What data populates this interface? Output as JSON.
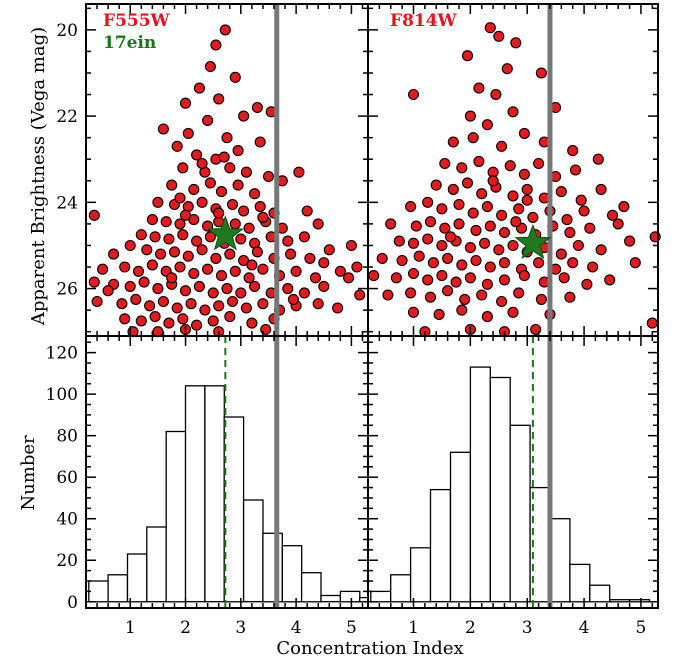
{
  "colors": {
    "point_fill": "#e41a1c",
    "point_edge": "#000000",
    "star": "#1f7a1f",
    "panel_label_red": "#e8101a",
    "panel_label_green": "#137a13",
    "ci_cut_line": "#777777",
    "dashed_line": "#137a13"
  },
  "chart_data": [
    {
      "type": "scatter",
      "panel": "top-left",
      "labels": [
        "F555W",
        "17ein"
      ],
      "xlim": [
        0.2,
        5.3
      ],
      "ylim": [
        27.1,
        19.4
      ],
      "y_reversed": true,
      "ylabel": "Apparent Brightness (Vega mag)",
      "yticks": [
        20,
        22,
        24,
        26
      ],
      "ci_cut": 3.65,
      "star": {
        "x": 2.72,
        "y": 24.75
      },
      "points": [
        [
          2.72,
          20.0
        ],
        [
          2.55,
          20.35
        ],
        [
          2.45,
          20.85
        ],
        [
          2.25,
          21.35
        ],
        [
          2.9,
          21.1
        ],
        [
          3.3,
          21.8
        ],
        [
          2.0,
          21.7
        ],
        [
          2.6,
          21.6
        ],
        [
          1.6,
          22.3
        ],
        [
          1.85,
          22.7
        ],
        [
          2.05,
          22.4
        ],
        [
          3.05,
          22.0
        ],
        [
          3.55,
          21.9
        ],
        [
          2.4,
          22.1
        ],
        [
          2.75,
          22.5
        ],
        [
          2.2,
          22.9
        ],
        [
          2.95,
          22.8
        ],
        [
          3.35,
          22.6
        ],
        [
          1.95,
          23.2
        ],
        [
          2.35,
          23.3
        ],
        [
          2.55,
          23.0
        ],
        [
          2.8,
          23.2
        ],
        [
          3.1,
          23.3
        ],
        [
          3.5,
          23.4
        ],
        [
          1.75,
          23.6
        ],
        [
          2.15,
          23.7
        ],
        [
          2.45,
          23.55
        ],
        [
          2.65,
          23.75
        ],
        [
          2.95,
          23.6
        ],
        [
          3.25,
          23.8
        ],
        [
          3.75,
          23.5
        ],
        [
          4.05,
          23.3
        ],
        [
          1.5,
          24.0
        ],
        [
          1.8,
          24.05
        ],
        [
          2.05,
          24.1
        ],
        [
          2.3,
          24.0
        ],
        [
          2.55,
          24.15
        ],
        [
          2.85,
          24.05
        ],
        [
          3.05,
          24.2
        ],
        [
          3.35,
          24.1
        ],
        [
          3.6,
          24.25
        ],
        [
          4.2,
          24.2
        ],
        [
          1.4,
          24.4
        ],
        [
          1.65,
          24.45
        ],
        [
          1.9,
          24.5
        ],
        [
          2.15,
          24.4
        ],
        [
          2.4,
          24.55
        ],
        [
          2.6,
          24.45
        ],
        [
          2.9,
          24.5
        ],
        [
          3.15,
          24.6
        ],
        [
          3.45,
          24.45
        ],
        [
          3.75,
          24.6
        ],
        [
          4.4,
          24.5
        ],
        [
          0.35,
          24.3
        ],
        [
          1.2,
          24.75
        ],
        [
          1.45,
          24.8
        ],
        [
          1.7,
          24.85
        ],
        [
          1.95,
          24.75
        ],
        [
          2.2,
          24.9
        ],
        [
          2.45,
          24.8
        ],
        [
          2.7,
          24.95
        ],
        [
          3.0,
          24.85
        ],
        [
          3.25,
          24.95
        ],
        [
          3.55,
          24.8
        ],
        [
          3.85,
          24.9
        ],
        [
          4.15,
          24.8
        ],
        [
          0.7,
          25.2
        ],
        [
          1.0,
          25.0
        ],
        [
          1.3,
          25.1
        ],
        [
          1.55,
          25.2
        ],
        [
          1.8,
          25.15
        ],
        [
          2.05,
          25.25
        ],
        [
          2.3,
          25.1
        ],
        [
          2.55,
          25.3
        ],
        [
          2.8,
          25.2
        ],
        [
          3.05,
          25.35
        ],
        [
          3.3,
          25.15
        ],
        [
          3.6,
          25.3
        ],
        [
          3.9,
          25.2
        ],
        [
          4.25,
          25.3
        ],
        [
          4.6,
          25.1
        ],
        [
          5.0,
          25.0
        ],
        [
          0.5,
          25.55
        ],
        [
          0.9,
          25.5
        ],
        [
          1.15,
          25.6
        ],
        [
          1.4,
          25.45
        ],
        [
          1.65,
          25.6
        ],
        [
          1.9,
          25.5
        ],
        [
          2.15,
          25.65
        ],
        [
          2.4,
          25.55
        ],
        [
          2.65,
          25.7
        ],
        [
          2.9,
          25.6
        ],
        [
          3.15,
          25.75
        ],
        [
          3.4,
          25.55
        ],
        [
          3.7,
          25.7
        ],
        [
          4.0,
          25.6
        ],
        [
          4.35,
          25.75
        ],
        [
          4.8,
          25.6
        ],
        [
          5.1,
          25.5
        ],
        [
          0.35,
          25.85
        ],
        [
          0.7,
          25.9
        ],
        [
          1.0,
          25.95
        ],
        [
          1.25,
          25.85
        ],
        [
          1.5,
          26.0
        ],
        [
          1.75,
          25.9
        ],
        [
          2.0,
          26.05
        ],
        [
          2.25,
          25.95
        ],
        [
          2.5,
          26.1
        ],
        [
          2.75,
          26.0
        ],
        [
          3.0,
          26.1
        ],
        [
          3.25,
          25.95
        ],
        [
          3.55,
          26.1
        ],
        [
          3.85,
          26.0
        ],
        [
          4.15,
          26.1
        ],
        [
          4.5,
          25.95
        ],
        [
          5.15,
          26.15
        ],
        [
          0.4,
          26.3
        ],
        [
          0.85,
          26.35
        ],
        [
          1.1,
          26.25
        ],
        [
          1.35,
          26.4
        ],
        [
          1.6,
          26.3
        ],
        [
          1.85,
          26.45
        ],
        [
          2.1,
          26.35
        ],
        [
          2.35,
          26.5
        ],
        [
          2.6,
          26.4
        ],
        [
          2.85,
          26.3
        ],
        [
          3.1,
          26.45
        ],
        [
          3.4,
          26.35
        ],
        [
          3.7,
          26.5
        ],
        [
          4.0,
          26.4
        ],
        [
          4.4,
          26.35
        ],
        [
          4.75,
          26.45
        ],
        [
          0.9,
          26.7
        ],
        [
          1.2,
          26.75
        ],
        [
          1.45,
          26.65
        ],
        [
          1.7,
          26.8
        ],
        [
          1.95,
          26.7
        ],
        [
          2.2,
          26.85
        ],
        [
          2.5,
          26.75
        ],
        [
          2.8,
          26.65
        ],
        [
          3.2,
          26.8
        ],
        [
          3.6,
          26.7
        ],
        [
          1.05,
          27.0
        ],
        [
          1.5,
          27.0
        ],
        [
          2.0,
          26.95
        ],
        [
          2.6,
          27.0
        ],
        [
          3.45,
          26.95
        ],
        [
          2.3,
          23.1
        ],
        [
          2.7,
          22.95
        ],
        [
          1.9,
          23.9
        ],
        [
          3.4,
          24.35
        ],
        [
          2.0,
          24.3
        ],
        [
          3.2,
          25.45
        ],
        [
          1.75,
          25.75
        ],
        [
          2.6,
          24.25
        ],
        [
          4.5,
          25.4
        ],
        [
          4.95,
          25.75
        ],
        [
          0.6,
          26.05
        ],
        [
          3.95,
          26.25
        ]
      ]
    },
    {
      "type": "scatter",
      "panel": "top-right",
      "labels": [
        "F814W"
      ],
      "xlim": [
        0.2,
        5.3
      ],
      "ylim": [
        27.1,
        19.4
      ],
      "y_reversed": true,
      "ci_cut": 3.4,
      "star": {
        "x": 3.1,
        "y": 24.95
      },
      "points": [
        [
          2.35,
          19.95
        ],
        [
          2.5,
          20.15
        ],
        [
          2.8,
          20.3
        ],
        [
          1.95,
          20.6
        ],
        [
          2.65,
          20.9
        ],
        [
          3.25,
          21.0
        ],
        [
          2.15,
          21.35
        ],
        [
          2.45,
          21.5
        ],
        [
          1.0,
          21.5
        ],
        [
          2.0,
          22.0
        ],
        [
          2.3,
          22.2
        ],
        [
          2.75,
          21.9
        ],
        [
          3.5,
          21.8
        ],
        [
          1.7,
          22.6
        ],
        [
          2.05,
          22.5
        ],
        [
          2.55,
          22.7
        ],
        [
          2.95,
          22.4
        ],
        [
          3.3,
          22.6
        ],
        [
          3.8,
          22.8
        ],
        [
          4.25,
          23.0
        ],
        [
          1.55,
          23.1
        ],
        [
          1.85,
          23.2
        ],
        [
          2.15,
          23.05
        ],
        [
          2.4,
          23.3
        ],
        [
          2.7,
          23.15
        ],
        [
          2.95,
          23.35
        ],
        [
          3.2,
          23.1
        ],
        [
          3.5,
          23.4
        ],
        [
          3.85,
          23.25
        ],
        [
          1.4,
          23.6
        ],
        [
          1.7,
          23.7
        ],
        [
          1.95,
          23.55
        ],
        [
          2.2,
          23.8
        ],
        [
          2.45,
          23.65
        ],
        [
          2.75,
          23.85
        ],
        [
          3.0,
          23.7
        ],
        [
          3.3,
          23.9
        ],
        [
          3.6,
          23.75
        ],
        [
          3.95,
          23.95
        ],
        [
          4.3,
          23.7
        ],
        [
          0.95,
          24.1
        ],
        [
          1.25,
          24.0
        ],
        [
          1.5,
          24.15
        ],
        [
          1.8,
          24.05
        ],
        [
          2.05,
          24.25
        ],
        [
          2.3,
          24.1
        ],
        [
          2.55,
          24.3
        ],
        [
          2.85,
          24.15
        ],
        [
          3.1,
          24.35
        ],
        [
          3.4,
          24.2
        ],
        [
          3.7,
          24.4
        ],
        [
          4.0,
          24.2
        ],
        [
          4.5,
          24.3
        ],
        [
          0.6,
          24.5
        ],
        [
          1.05,
          24.55
        ],
        [
          1.3,
          24.45
        ],
        [
          1.55,
          24.6
        ],
        [
          1.8,
          24.5
        ],
        [
          2.1,
          24.65
        ],
        [
          2.35,
          24.55
        ],
        [
          2.6,
          24.7
        ],
        [
          2.9,
          24.6
        ],
        [
          3.15,
          24.75
        ],
        [
          3.45,
          24.55
        ],
        [
          3.75,
          24.7
        ],
        [
          4.1,
          24.6
        ],
        [
          4.6,
          24.5
        ],
        [
          0.75,
          24.9
        ],
        [
          1.0,
          24.95
        ],
        [
          1.25,
          24.85
        ],
        [
          1.5,
          25.0
        ],
        [
          1.75,
          24.9
        ],
        [
          2.0,
          25.05
        ],
        [
          2.25,
          24.95
        ],
        [
          2.5,
          25.1
        ],
        [
          2.75,
          25.0
        ],
        [
          3.0,
          25.15
        ],
        [
          3.3,
          25.05
        ],
        [
          3.6,
          25.2
        ],
        [
          3.9,
          25.0
        ],
        [
          4.3,
          25.1
        ],
        [
          4.8,
          24.9
        ],
        [
          0.45,
          25.3
        ],
        [
          0.8,
          25.35
        ],
        [
          1.1,
          25.25
        ],
        [
          1.35,
          25.4
        ],
        [
          1.6,
          25.3
        ],
        [
          1.85,
          25.45
        ],
        [
          2.1,
          25.35
        ],
        [
          2.35,
          25.5
        ],
        [
          2.6,
          25.4
        ],
        [
          2.9,
          25.55
        ],
        [
          3.2,
          25.4
        ],
        [
          3.5,
          25.55
        ],
        [
          3.8,
          25.4
        ],
        [
          4.15,
          25.5
        ],
        [
          4.9,
          25.4
        ],
        [
          0.3,
          25.7
        ],
        [
          0.7,
          25.75
        ],
        [
          1.0,
          25.65
        ],
        [
          1.25,
          25.8
        ],
        [
          1.5,
          25.7
        ],
        [
          1.75,
          25.85
        ],
        [
          2.0,
          25.75
        ],
        [
          2.3,
          25.9
        ],
        [
          2.6,
          25.8
        ],
        [
          2.95,
          25.7
        ],
        [
          3.3,
          25.85
        ],
        [
          3.65,
          25.75
        ],
        [
          4.05,
          25.9
        ],
        [
          4.45,
          25.8
        ],
        [
          0.55,
          26.15
        ],
        [
          0.95,
          26.1
        ],
        [
          1.3,
          26.2
        ],
        [
          1.6,
          26.05
        ],
        [
          1.9,
          26.25
        ],
        [
          2.2,
          26.15
        ],
        [
          2.55,
          26.3
        ],
        [
          2.85,
          26.1
        ],
        [
          3.25,
          26.25
        ],
        [
          3.75,
          26.2
        ],
        [
          1.0,
          26.55
        ],
        [
          1.45,
          26.6
        ],
        [
          1.85,
          26.5
        ],
        [
          2.3,
          26.65
        ],
        [
          2.75,
          26.55
        ],
        [
          3.4,
          26.6
        ],
        [
          1.2,
          27.0
        ],
        [
          2.0,
          26.95
        ],
        [
          2.6,
          27.0
        ],
        [
          3.15,
          26.95
        ],
        [
          5.2,
          26.8
        ],
        [
          5.25,
          24.8
        ],
        [
          4.7,
          24.1
        ],
        [
          2.4,
          23.5
        ],
        [
          2.8,
          24.45
        ],
        [
          3.0,
          23.95
        ],
        [
          1.65,
          24.8
        ]
      ]
    },
    {
      "type": "bar",
      "panel": "bottom-left",
      "xlabel": "Concentration Index",
      "ylabel": "Number",
      "xlim": [
        0.2,
        5.3
      ],
      "ylim": [
        -3,
        128
      ],
      "xticks": [
        1,
        2,
        3,
        4,
        5
      ],
      "yticks": [
        0,
        20,
        40,
        60,
        80,
        100,
        120
      ],
      "bin_edges": [
        0.25,
        0.6,
        0.95,
        1.3,
        1.65,
        2.0,
        2.35,
        2.7,
        3.05,
        3.4,
        3.75,
        4.1,
        4.45,
        4.8,
        5.15,
        5.3
      ],
      "values": [
        10,
        13,
        23,
        36,
        82,
        104,
        104,
        89,
        49,
        33,
        27,
        14,
        3,
        5,
        2
      ],
      "dashed_x": 2.72,
      "ci_cut": 3.65
    },
    {
      "type": "bar",
      "panel": "bottom-right",
      "xlim": [
        0.2,
        5.3
      ],
      "ylim": [
        -3,
        128
      ],
      "xticks": [
        1,
        2,
        3,
        4,
        5
      ],
      "bin_edges": [
        0.25,
        0.6,
        0.95,
        1.3,
        1.65,
        2.0,
        2.35,
        2.7,
        3.05,
        3.4,
        3.75,
        4.1,
        4.45,
        4.8,
        5.15,
        5.3
      ],
      "values": [
        5,
        13,
        26,
        54,
        72,
        113,
        108,
        85,
        55,
        40,
        18,
        8,
        1,
        1,
        0
      ],
      "dashed_x": 3.1,
      "ci_cut": 3.4
    }
  ]
}
